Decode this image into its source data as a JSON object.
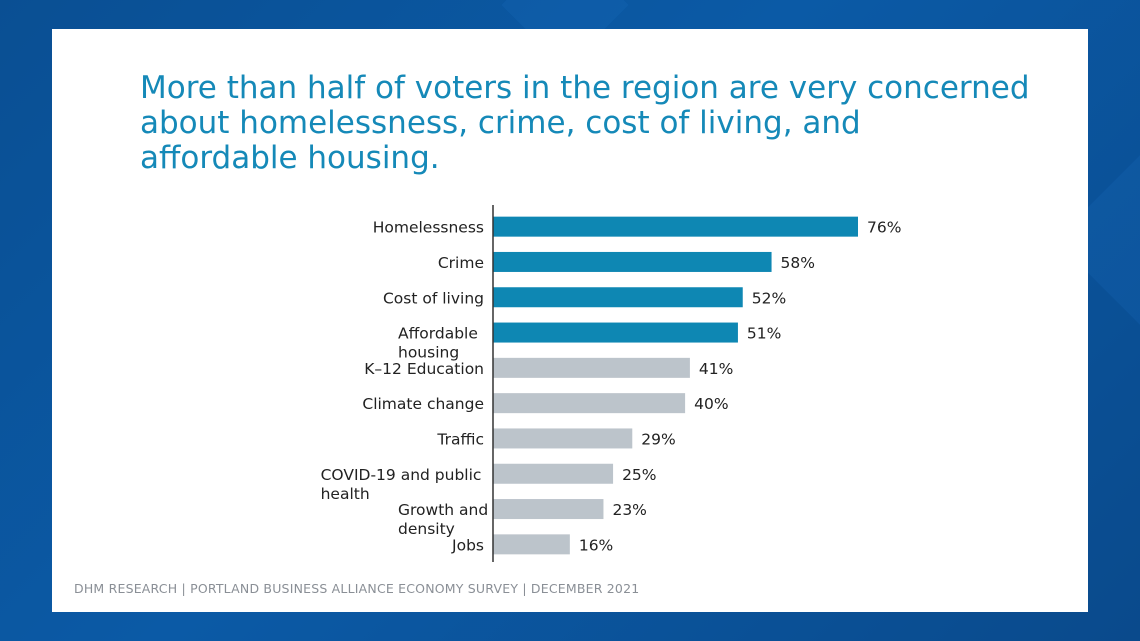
{
  "slide": {
    "title_lines": [
      "More than half of voters in the region are very concerned",
      "about homelessness, crime, cost of living, and",
      "affordable housing."
    ],
    "source": "DHM RESEARCH | PORTLAND BUSINESS ALLIANCE ECONOMY SURVEY | DECEMBER 2021"
  },
  "colors": {
    "highlight": "#0e87b3",
    "muted": "#bcc4cb",
    "axis": "#333333",
    "text": "#222222"
  },
  "chart_data": {
    "type": "bar",
    "orientation": "horizontal",
    "categories": [
      [
        "Homelessness"
      ],
      [
        "Crime"
      ],
      [
        "Cost of living"
      ],
      [
        "Affordable",
        "housing"
      ],
      [
        "K–12 Education"
      ],
      [
        "Climate change"
      ],
      [
        "Traffic"
      ],
      [
        "COVID-19 and public",
        "health"
      ],
      [
        "Growth and",
        "density"
      ],
      [
        "Jobs"
      ]
    ],
    "values": [
      76,
      58,
      52,
      51,
      41,
      40,
      29,
      25,
      23,
      16
    ],
    "value_labels": [
      "76%",
      "58%",
      "52%",
      "51%",
      "41%",
      "40%",
      "29%",
      "25%",
      "23%",
      "16%"
    ],
    "highlighted": [
      true,
      true,
      true,
      true,
      false,
      false,
      false,
      false,
      false,
      false
    ],
    "xlim": [
      0,
      100
    ],
    "grid": false,
    "legend": "none"
  }
}
